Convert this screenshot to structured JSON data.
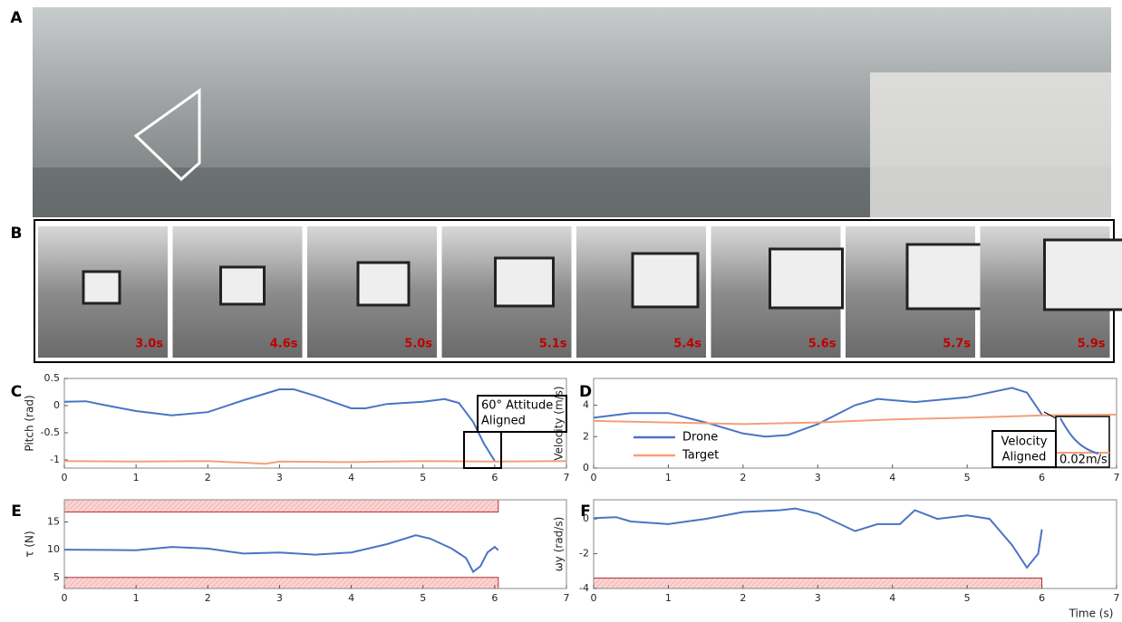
{
  "panel_labels": [
    "A",
    "B",
    "C",
    "D",
    "E",
    "F"
  ],
  "frames": [
    "3.0s",
    "4.6s",
    "5.0s",
    "5.1s",
    "5.4s",
    "5.6s",
    "5.7s",
    "5.9s"
  ],
  "chart_data": [
    {
      "type": "line",
      "ylabel": "Pitch (rad)",
      "xlim": [
        0,
        7
      ],
      "ylim": [
        -1.15,
        0.5
      ],
      "xticks": [
        0,
        1,
        2,
        3,
        4,
        5,
        6,
        7
      ],
      "yticks": [
        -1,
        -0.5,
        0,
        0.5
      ],
      "annotation": [
        "60° Attitude",
        "Aligned"
      ],
      "series": [
        {
          "color": "#4a74c4",
          "x": [
            0,
            0.3,
            0.6,
            1,
            1.5,
            2,
            2.5,
            3,
            3.2,
            3.5,
            4,
            4.2,
            4.5,
            5,
            5.3,
            5.5,
            5.7,
            5.85,
            6
          ],
          "values": [
            0.07,
            0.08,
            0.0,
            -0.1,
            -0.18,
            -0.12,
            0.1,
            0.3,
            0.3,
            0.18,
            -0.05,
            -0.05,
            0.03,
            0.07,
            0.12,
            0.05,
            -0.3,
            -0.7,
            -1.02
          ]
        },
        {
          "color": "#f4a07a",
          "x": [
            0,
            1,
            2,
            2.5,
            2.8,
            3,
            4,
            5,
            6,
            7
          ],
          "values": [
            -1.02,
            -1.03,
            -1.02,
            -1.05,
            -1.07,
            -1.03,
            -1.04,
            -1.02,
            -1.03,
            -1.02
          ]
        }
      ]
    },
    {
      "type": "line",
      "ylabel": "Velocity (m/s)",
      "xlim": [
        0,
        7
      ],
      "ylim": [
        0,
        5.7
      ],
      "xticks": [
        0,
        1,
        2,
        3,
        4,
        5,
        6,
        7
      ],
      "yticks": [
        0,
        2,
        4
      ],
      "annotation": [
        "Velocity",
        "Aligned"
      ],
      "inset_label": "0.02m/s",
      "series": [
        {
          "name": "Drone",
          "color": "#4a74c4",
          "x": [
            0,
            0.5,
            1,
            1.5,
            2,
            2.3,
            2.6,
            3,
            3.5,
            3.8,
            4.3,
            5,
            5.6,
            5.8,
            6
          ],
          "values": [
            3.2,
            3.5,
            3.5,
            2.9,
            2.2,
            2.0,
            2.1,
            2.8,
            4.0,
            4.4,
            4.2,
            4.5,
            5.1,
            4.8,
            3.4
          ]
        },
        {
          "name": "Target",
          "color": "#f4a07a",
          "x": [
            0,
            1,
            2,
            3,
            4,
            5,
            6,
            7
          ],
          "values": [
            3.0,
            2.9,
            2.8,
            2.9,
            3.1,
            3.2,
            3.35,
            3.4
          ]
        }
      ]
    },
    {
      "type": "line",
      "ylabel": "τ (N)",
      "xlim": [
        0,
        7
      ],
      "ylim": [
        3,
        19
      ],
      "xticks": [
        0,
        1,
        2,
        3,
        4,
        5,
        6,
        7
      ],
      "yticks": [
        5,
        10,
        15
      ],
      "bands": [
        {
          "x": [
            0,
            6.05
          ],
          "y": [
            16.8,
            19
          ]
        },
        {
          "x": [
            0,
            6.05
          ],
          "y": [
            3,
            5
          ]
        }
      ],
      "series": [
        {
          "color": "#4a74c4",
          "x": [
            0,
            1,
            1.5,
            2,
            2.5,
            3,
            3.5,
            4,
            4.5,
            4.9,
            5.1,
            5.4,
            5.6,
            5.7,
            5.8,
            5.9,
            6,
            6.05
          ],
          "values": [
            10,
            9.9,
            10.5,
            10.2,
            9.3,
            9.5,
            9.1,
            9.5,
            11,
            12.6,
            12,
            10.2,
            8.5,
            6,
            7,
            9.5,
            10.5,
            9.9
          ]
        }
      ]
    },
    {
      "type": "line",
      "ylabel": "ωy (rad/s)",
      "xlabel": "Time (s)",
      "xlim": [
        0,
        7
      ],
      "ylim": [
        -4,
        1.1
      ],
      "xticks": [
        0,
        1,
        2,
        3,
        4,
        5,
        6,
        7
      ],
      "yticks": [
        0,
        -2,
        -4
      ],
      "bands": [
        {
          "x": [
            0,
            6
          ],
          "y": [
            -4,
            -3.4
          ]
        }
      ],
      "series": [
        {
          "color": "#4a74c4",
          "x": [
            0,
            0.3,
            0.5,
            1,
            1.5,
            2,
            2.5,
            2.7,
            3,
            3.5,
            3.8,
            4.1,
            4.3,
            4.6,
            5,
            5.3,
            5.6,
            5.8,
            5.95,
            6
          ],
          "values": [
            0.05,
            0.1,
            -0.15,
            -0.3,
            0,
            0.4,
            0.5,
            0.6,
            0.3,
            -0.7,
            -0.3,
            -0.3,
            0.5,
            0,
            0.2,
            0,
            -1.5,
            -2.8,
            -2,
            -0.6
          ]
        }
      ]
    }
  ]
}
